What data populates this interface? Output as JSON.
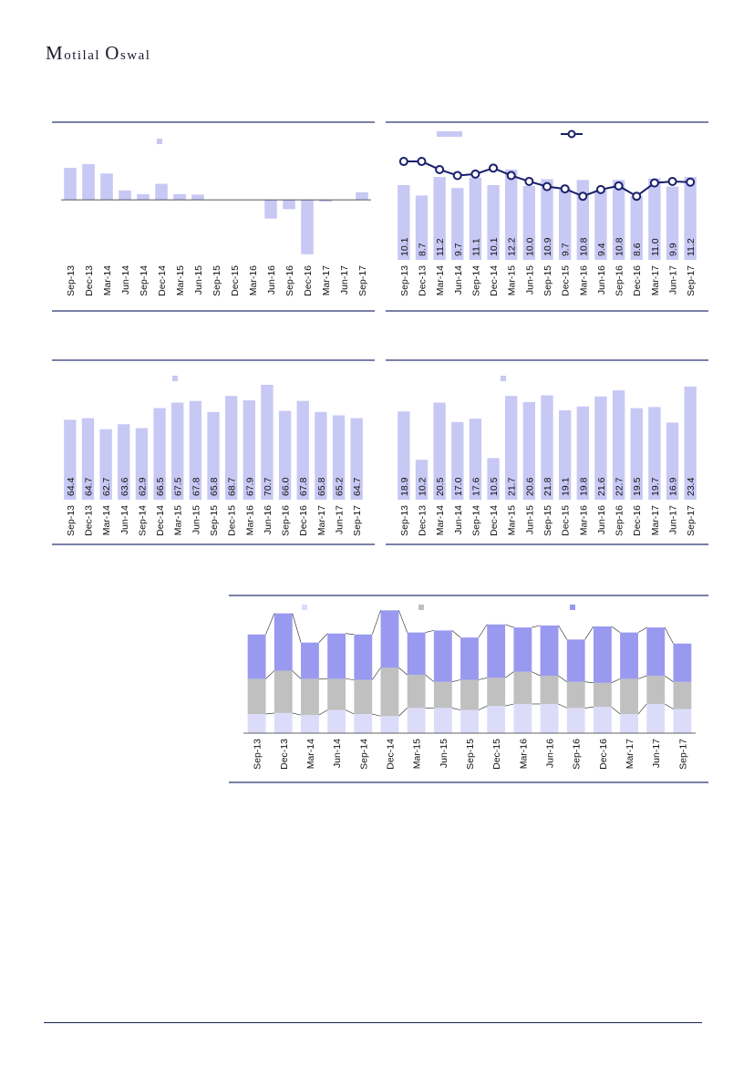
{
  "header": {
    "logo_first": "M",
    "logo_rest": "otilal ",
    "logo_second_first": "O",
    "logo_second_rest": "swal"
  },
  "colors": {
    "bar": "#c8c8f5",
    "line": "#1a1f6b",
    "rule": "#2a3370",
    "stack_bottom": "#dcdcfa",
    "stack_middle": "#c0c0c0",
    "stack_top": "#9999f0"
  },
  "chart_data": [
    {
      "id": "c1",
      "type": "bar",
      "categories": [
        "Sep-13",
        "Dec-13",
        "Mar-14",
        "Jun-14",
        "Sep-14",
        "Dec-14",
        "Mar-15",
        "Jun-15",
        "Sep-15",
        "Dec-15",
        "Mar-16",
        "Jun-16",
        "Sep-16",
        "Dec-16",
        "Mar-17",
        "Jun-17",
        "Sep-17"
      ],
      "values": [
        1.7,
        1.9,
        1.4,
        0.5,
        0.3,
        0.85,
        0.3,
        0.28,
        0,
        0,
        0,
        -1.0,
        -0.5,
        -2.9,
        -0.1,
        0,
        0.4
      ],
      "ylim": [
        -3.2,
        3.5
      ],
      "data_labels": false
    },
    {
      "id": "c2",
      "type": "bar+line",
      "categories": [
        "Sep-13",
        "Dec-13",
        "Mar-14",
        "Jun-14",
        "Sep-14",
        "Dec-14",
        "Mar-15",
        "Jun-15",
        "Sep-15",
        "Dec-15",
        "Mar-16",
        "Jun-16",
        "Sep-16",
        "Dec-16",
        "Mar-17",
        "Jun-17",
        "Sep-17"
      ],
      "values": [
        10.1,
        8.7,
        11.2,
        9.7,
        11.1,
        10.1,
        12.2,
        10.0,
        10.9,
        9.7,
        10.8,
        9.4,
        10.8,
        8.6,
        11.0,
        9.9,
        11.2
      ],
      "line_values": [
        13.3,
        13.3,
        12.2,
        11.4,
        11.6,
        12.4,
        11.4,
        10.6,
        9.9,
        9.6,
        8.6,
        9.5,
        10.0,
        8.6,
        10.4,
        10.6,
        10.5
      ],
      "ylim": [
        0,
        17
      ],
      "data_labels": true
    },
    {
      "id": "c3",
      "type": "bar",
      "categories": [
        "Sep-13",
        "Dec-13",
        "Mar-14",
        "Jun-14",
        "Sep-14",
        "Dec-14",
        "Mar-15",
        "Jun-15",
        "Sep-15",
        "Dec-15",
        "Mar-16",
        "Jun-16",
        "Sep-16",
        "Dec-16",
        "Mar-17",
        "Jun-17",
        "Sep-17"
      ],
      "values": [
        64.4,
        64.7,
        62.7,
        63.6,
        62.9,
        66.5,
        67.5,
        67.8,
        65.8,
        68.7,
        67.9,
        70.7,
        66.0,
        67.8,
        65.8,
        65.2,
        64.7
      ],
      "ylim": [
        50,
        73
      ],
      "data_labels": true
    },
    {
      "id": "c4",
      "type": "bar",
      "categories": [
        "Sep-13",
        "Dec-13",
        "Mar-14",
        "Jun-14",
        "Sep-14",
        "Dec-14",
        "Mar-15",
        "Jun-15",
        "Sep-15",
        "Dec-15",
        "Mar-16",
        "Jun-16",
        "Sep-16",
        "Dec-16",
        "Mar-17",
        "Jun-17",
        "Sep-17"
      ],
      "values": [
        18.9,
        10.2,
        20.5,
        17.0,
        17.6,
        10.5,
        21.7,
        20.6,
        21.8,
        19.1,
        19.8,
        21.6,
        22.7,
        19.5,
        19.7,
        16.9,
        23.4
      ],
      "ylim": [
        3,
        26
      ],
      "data_labels": true
    },
    {
      "id": "c5",
      "type": "stacked-bar",
      "categories": [
        "Sep-13",
        "Dec-13",
        "Mar-14",
        "Jun-14",
        "Sep-14",
        "Dec-14",
        "Mar-15",
        "Jun-15",
        "Sep-15",
        "Dec-15",
        "Mar-16",
        "Jun-16",
        "Sep-16",
        "Dec-16",
        "Mar-17",
        "Jun-17",
        "Sep-17"
      ],
      "series": [
        {
          "values": [
            19,
            20,
            18,
            23,
            19,
            17,
            25,
            25,
            23,
            27,
            29,
            29,
            25,
            26,
            19,
            29,
            24
          ]
        },
        {
          "values": [
            35,
            42,
            36,
            31,
            34,
            48,
            33,
            26,
            30,
            28,
            32,
            28,
            26,
            24,
            35,
            28,
            27
          ]
        },
        {
          "values": [
            44,
            57,
            36,
            45,
            45,
            57,
            42,
            51,
            42,
            53,
            44,
            50,
            42,
            56,
            46,
            48,
            38
          ]
        }
      ],
      "ylim": [
        0,
        125
      ],
      "data_labels": false
    }
  ]
}
